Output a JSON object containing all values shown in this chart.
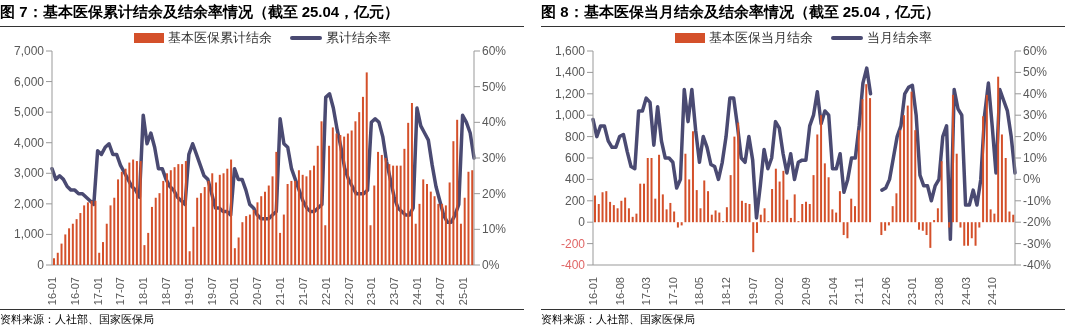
{
  "chart_data": [
    {
      "type": "bar",
      "title": "图 7：基本医保累计结余及结余率情况（截至 25.04，亿元）",
      "annotations": [
        "资料来源：人社部、国家医保局"
      ],
      "legend": "top",
      "categories": [
        "16-01",
        null,
        null,
        null,
        null,
        null,
        "16-07",
        null,
        null,
        null,
        null,
        null,
        "17-01",
        null,
        null,
        null,
        null,
        null,
        "17-07",
        null,
        null,
        null,
        null,
        null,
        "18-01",
        null,
        null,
        null,
        null,
        null,
        "18-07",
        null,
        null,
        null,
        null,
        null,
        "19-01",
        null,
        null,
        null,
        null,
        null,
        "19-07",
        null,
        null,
        null,
        null,
        null,
        "20-01",
        null,
        null,
        null,
        null,
        null,
        "20-07",
        null,
        null,
        null,
        null,
        null,
        "21-01",
        null,
        null,
        null,
        null,
        null,
        "21-07",
        null,
        null,
        null,
        null,
        null,
        "22-01",
        null,
        null,
        null,
        null,
        null,
        "22-07",
        null,
        null,
        null,
        null,
        null,
        "23-01",
        null,
        null,
        null,
        null,
        null,
        "23-07",
        null,
        null,
        null,
        null,
        null,
        "24-01",
        null,
        null,
        null,
        null,
        null,
        "24-07",
        null,
        null,
        null,
        null,
        null,
        "25-01",
        null,
        null,
        null
      ],
      "series": [
        {
          "name": "基本医保累计结余",
          "color": "#d4502a",
          "values": [
            220,
            400,
            700,
            1000,
            1200,
            1350,
            1500,
            1700,
            1950,
            2050,
            2100,
            2100,
            400,
            750,
            1350,
            1950,
            2200,
            2800,
            3050,
            3150,
            3350,
            3450,
            3400,
            3400,
            650,
            1050,
            1900,
            2200,
            2350,
            2750,
            3000,
            3100,
            3200,
            3300,
            3300,
            3400,
            450,
            1250,
            2200,
            2350,
            2550,
            2750,
            3000,
            2700,
            2950,
            3000,
            3150,
            3450,
            550,
            900,
            1400,
            1600,
            1650,
            1800,
            2050,
            2250,
            2400,
            2600,
            2900,
            3700,
            1050,
            1650,
            2650,
            2750,
            2750,
            3100,
            2950,
            2900,
            3100,
            3250,
            3900,
            4700,
            1300,
            3900,
            4500,
            4300,
            4250,
            4200,
            4300,
            4400,
            4700,
            5000,
            5500,
            6300,
            1300,
            2600,
            3700,
            3600,
            3500,
            3300,
            3250,
            3250,
            3250,
            3800,
            4650,
            5300,
            1350,
            2000,
            2800,
            2650,
            2400,
            2250,
            2000,
            2000,
            1950,
            2700,
            4050,
            4750,
            1350,
            2200,
            3050,
            3100
          ]
        },
        {
          "name": "累计结余率",
          "type": "line",
          "axis": "y2",
          "color": "#4a4a72",
          "values": [
            27,
            24,
            25,
            24,
            22,
            21,
            21,
            20,
            20,
            19,
            18,
            17,
            32,
            31,
            33,
            34,
            31,
            31,
            28,
            26,
            24,
            22,
            21,
            19,
            42,
            34,
            37,
            33,
            27,
            27,
            24,
            22,
            21,
            19,
            18,
            17,
            31,
            34,
            31,
            28,
            25,
            24,
            20,
            16,
            16,
            15,
            15,
            14,
            27,
            24,
            24,
            21,
            17,
            16,
            14,
            13,
            13,
            13,
            14,
            15,
            41,
            34,
            33,
            27,
            24,
            21,
            18,
            16,
            15,
            15,
            16,
            17,
            47,
            48,
            44,
            38,
            33,
            27,
            24,
            22,
            20,
            20,
            20,
            21,
            40,
            41,
            40,
            36,
            29,
            24,
            19,
            16,
            15,
            14,
            14,
            16,
            44,
            39,
            37,
            35,
            28,
            22,
            18,
            14,
            12,
            12,
            14,
            17,
            42,
            40,
            37,
            30
          ]
        }
      ],
      "ylim": [
        0,
        7000
      ],
      "yticks": [
        0,
        {
          "value": 1000,
          "label": "1,000"
        },
        {
          "value": 2000,
          "label": "2,000"
        },
        {
          "value": 3000,
          "label": "3,000"
        },
        {
          "value": 4000,
          "label": "4,000"
        },
        {
          "value": 5000,
          "label": "5,000"
        },
        {
          "value": 6000,
          "label": "6,000"
        },
        {
          "value": 7000,
          "label": "7,000"
        }
      ],
      "y2lim": [
        0,
        60
      ],
      "y2ticks": [
        {
          "value": 0,
          "label": "0%"
        },
        {
          "value": 10,
          "label": "10%"
        },
        {
          "value": 20,
          "label": "20%"
        },
        {
          "value": 30,
          "label": "30%"
        },
        {
          "value": 40,
          "label": "40%"
        },
        {
          "value": 50,
          "label": "50%"
        },
        {
          "value": 60,
          "label": "60%"
        }
      ]
    },
    {
      "type": "bar",
      "title": "图 8：基本医保当月结余及结余率情况（截至 25.04，亿元）",
      "annotations": [
        "资料来源：人社部、国家医保局"
      ],
      "legend": "top",
      "categories": [
        "16-01",
        null,
        null,
        null,
        null,
        null,
        null,
        "16-08",
        null,
        null,
        null,
        null,
        null,
        null,
        "17-03",
        null,
        null,
        null,
        null,
        null,
        null,
        "17-10",
        null,
        null,
        null,
        null,
        null,
        null,
        "18-05",
        null,
        null,
        null,
        null,
        null,
        null,
        "18-12",
        null,
        null,
        null,
        null,
        null,
        null,
        "19-07",
        null,
        null,
        null,
        null,
        null,
        null,
        "20-02",
        null,
        null,
        null,
        null,
        null,
        null,
        "20-09",
        null,
        null,
        null,
        null,
        null,
        null,
        "21-04",
        null,
        null,
        null,
        null,
        null,
        null,
        "21-11",
        null,
        null,
        null,
        null,
        null,
        null,
        "22-06",
        null,
        null,
        null,
        null,
        null,
        null,
        "23-01",
        null,
        null,
        null,
        null,
        null,
        null,
        "23-08",
        null,
        null,
        null,
        null,
        null,
        null,
        "24-03",
        null,
        null,
        null,
        null,
        null,
        null,
        "24-10",
        null,
        null,
        null,
        null,
        null,
        null
      ],
      "series": [
        {
          "name": "基本医保当月结余",
          "color": "#d4502a",
          "values": [
            250,
            170,
            280,
            290,
            190,
            160,
            130,
            200,
            230,
            130,
            50,
            80,
            360,
            360,
            600,
            600,
            220,
            630,
            260,
            120,
            180,
            100,
            -50,
            -30,
            640,
            400,
            850,
            300,
            130,
            390,
            290,
            70,
            110,
            90,
            10,
            140,
            440,
            800,
            930,
            200,
            180,
            170,
            -280,
            -100,
            70,
            130,
            10,
            310,
            500,
            380,
            480,
            210,
            40,
            260,
            10,
            170,
            190,
            170,
            440,
            820,
            1000,
            550,
            420,
            120,
            90,
            290,
            -120,
            -150,
            220,
            150,
            860,
            1150,
            1290,
            1160,
            null,
            null,
            -120,
            -80,
            -30,
            150,
            270,
            860,
            1000,
            1090,
            1220,
            860,
            -70,
            -80,
            -120,
            -240,
            20,
            130,
            570,
            0,
            -50,
            1190,
            640,
            -50,
            -220,
            -220,
            -150,
            -220,
            -50,
            990,
            1190,
            120,
            80,
            1360,
            820,
            600,
            100,
            70
          ]
        },
        {
          "name": "当月结余率",
          "type": "line",
          "axis": "y2",
          "color": "#4a4a72",
          "values": [
            28,
            20,
            25,
            25,
            18,
            15,
            15,
            20,
            21,
            13,
            6,
            5,
            32,
            32,
            38,
            36,
            16,
            34,
            18,
            10,
            10,
            8,
            -4,
            0,
            42,
            27,
            42,
            23,
            8,
            20,
            15,
            7,
            6,
            0,
            8,
            20,
            38,
            38,
            25,
            10,
            8,
            20,
            9,
            -18,
            -3,
            14,
            5,
            10,
            27,
            24,
            12,
            3,
            12,
            0,
            8,
            9,
            9,
            25,
            30,
            41,
            26,
            32,
            30,
            5,
            5,
            12,
            -6,
            0,
            10,
            10,
            25,
            45,
            52,
            40,
            null,
            null,
            -5,
            -4,
            0,
            10,
            20,
            25,
            40,
            43,
            44,
            30,
            2,
            -3,
            -3,
            -10,
            -3,
            0,
            20,
            25,
            -28,
            42,
            33,
            30,
            -12,
            -12,
            -5,
            -12,
            0,
            30,
            45,
            25,
            3,
            42,
            37,
            32,
            20,
            3
          ]
        }
      ],
      "ylim": [
        -400,
        1600
      ],
      "yticks": [
        -400,
        -200,
        0,
        200,
        400,
        600,
        800,
        {
          "value": 1000,
          "label": "1,000"
        },
        {
          "value": 1200,
          "label": "1,200"
        },
        {
          "value": 1400,
          "label": "1,400"
        },
        {
          "value": 1600,
          "label": "1,600"
        }
      ],
      "y2lim": [
        -40,
        60
      ],
      "y2ticks": [
        {
          "value": -40,
          "label": "-40%"
        },
        {
          "value": -30,
          "label": "-30%"
        },
        {
          "value": -20,
          "label": "-20%"
        },
        {
          "value": -10,
          "label": "-10%"
        },
        {
          "value": 0,
          "label": "0%"
        },
        {
          "value": 10,
          "label": "10%"
        },
        {
          "value": 20,
          "label": "20%"
        },
        {
          "value": 30,
          "label": "30%"
        },
        {
          "value": 40,
          "label": "40%"
        },
        {
          "value": 50,
          "label": "50%"
        },
        {
          "value": 60,
          "label": "60%"
        }
      ]
    }
  ]
}
